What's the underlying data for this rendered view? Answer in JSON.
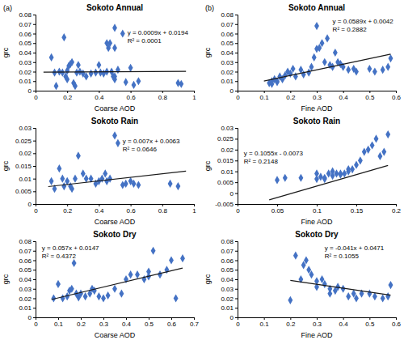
{
  "chart_data": [
    {
      "type": "scatter",
      "title": "Sokoto Annual",
      "panel_label": "(a)",
      "xlabel": "Coarse AOD",
      "ylabel": "grc",
      "xlim": [
        0,
        1
      ],
      "ylim": [
        0,
        0.08
      ],
      "xticks": [
        0,
        0.2,
        0.4,
        0.6,
        0.8,
        1
      ],
      "yticks": [
        0,
        0.01,
        0.02,
        0.03,
        0.04,
        0.05,
        0.06,
        0.07,
        0.08
      ],
      "annotations": [
        "y = 0.0009x + 0.0194",
        "R² = 0.0001"
      ],
      "grid": false,
      "series": [
        {
          "type": "scatter",
          "color": "#4472c4",
          "marker": "diamond",
          "x": [
            0.1,
            0.12,
            0.13,
            0.15,
            0.17,
            0.18,
            0.19,
            0.2,
            0.2,
            0.21,
            0.22,
            0.23,
            0.24,
            0.25,
            0.26,
            0.27,
            0.28,
            0.3,
            0.32,
            0.35,
            0.38,
            0.4,
            0.41,
            0.43,
            0.45,
            0.45,
            0.46,
            0.47,
            0.48,
            0.49,
            0.5,
            0.5,
            0.5,
            0.5,
            0.52,
            0.55,
            0.57,
            0.6,
            0.62,
            0.65,
            0.9,
            0.92
          ],
          "values": [
            0.035,
            0.019,
            0.005,
            0.02,
            0.019,
            0.056,
            0.015,
            0.021,
            0.012,
            0.026,
            0.028,
            0.03,
            0.008,
            0.005,
            0.019,
            0.027,
            0.02,
            0.018,
            0.015,
            0.018,
            0.019,
            0.027,
            0.019,
            0.018,
            0.02,
            0.05,
            0.045,
            0.05,
            0.02,
            0.015,
            0.066,
            0.045,
            0.015,
            0.012,
            0.022,
            0.06,
            0.009,
            0.024,
            0.006,
            0.01,
            0.008,
            0.007
          ]
        },
        {
          "type": "line",
          "color": "#1a1a1a",
          "line_style": "solid",
          "x": [
            0.05,
            0.95
          ],
          "values": [
            0.019445,
            0.020255
          ]
        }
      ]
    },
    {
      "type": "scatter",
      "title": "Sokoto Annual",
      "panel_label": "(b)",
      "xlabel": "Fine AOD",
      "ylabel": "grc",
      "xlim": [
        0,
        0.6
      ],
      "ylim": [
        0,
        0.08
      ],
      "xticks": [
        0,
        0.1,
        0.2,
        0.3,
        0.4,
        0.5,
        0.6
      ],
      "yticks": [
        0,
        0.01,
        0.02,
        0.03,
        0.04,
        0.05,
        0.06,
        0.07,
        0.08
      ],
      "annotations": [
        "y = 0.0589x + 0.0042",
        "R² = 0.2882"
      ],
      "grid": false,
      "series": [
        {
          "type": "scatter",
          "color": "#4472c4",
          "marker": "diamond",
          "x": [
            0.12,
            0.13,
            0.13,
            0.14,
            0.15,
            0.15,
            0.16,
            0.17,
            0.18,
            0.19,
            0.2,
            0.21,
            0.22,
            0.24,
            0.25,
            0.27,
            0.28,
            0.29,
            0.3,
            0.3,
            0.31,
            0.32,
            0.33,
            0.34,
            0.35,
            0.36,
            0.37,
            0.38,
            0.39,
            0.4,
            0.42,
            0.44,
            0.45,
            0.5,
            0.52,
            0.55,
            0.57,
            0.58
          ],
          "values": [
            0.008,
            0.007,
            0.01,
            0.012,
            0.009,
            0.01,
            0.015,
            0.012,
            0.016,
            0.02,
            0.018,
            0.023,
            0.015,
            0.022,
            0.017,
            0.019,
            0.025,
            0.035,
            0.068,
            0.044,
            0.045,
            0.05,
            0.03,
            0.055,
            0.027,
            0.025,
            0.04,
            0.03,
            0.028,
            0.025,
            0.022,
            0.023,
            0.02,
            0.023,
            0.02,
            0.022,
            0.025,
            0.034
          ]
        },
        {
          "type": "line",
          "color": "#1a1a1a",
          "line_style": "solid",
          "x": [
            0.1,
            0.58
          ],
          "values": [
            0.01009,
            0.038362
          ]
        }
      ]
    },
    {
      "type": "scatter",
      "title": "Sokoto Rain",
      "xlabel": "Coarse AOD",
      "ylabel": "grc",
      "xlim": [
        0,
        1
      ],
      "ylim": [
        0,
        0.03
      ],
      "xticks": [
        0,
        0.2,
        0.4,
        0.6,
        0.8,
        1
      ],
      "yticks": [
        0,
        0.005,
        0.01,
        0.015,
        0.02,
        0.025,
        0.03
      ],
      "annotations": [
        "y = 0.007x + 0.0063",
        "R² = 0.0646"
      ],
      "grid": false,
      "series": [
        {
          "type": "scatter",
          "color": "#4472c4",
          "marker": "diamond",
          "x": [
            0.1,
            0.12,
            0.15,
            0.17,
            0.18,
            0.2,
            0.22,
            0.23,
            0.25,
            0.27,
            0.3,
            0.32,
            0.35,
            0.38,
            0.4,
            0.42,
            0.44,
            0.45,
            0.47,
            0.5,
            0.52,
            0.55,
            0.57,
            0.6,
            0.62,
            0.65,
            0.85,
            0.9
          ],
          "values": [
            0.009,
            0.006,
            0.014,
            0.01,
            0.007,
            0.009,
            0.007,
            0.006,
            0.01,
            0.019,
            0.012,
            0.01,
            0.01,
            0.008,
            0.009,
            0.01,
            0.012,
            0.009,
            0.01,
            0.027,
            0.024,
            0.0075,
            0.008,
            0.009,
            0.008,
            0.0075,
            0.008,
            0.007
          ]
        },
        {
          "type": "line",
          "color": "#1a1a1a",
          "line_style": "solid",
          "x": [
            0.08,
            0.95
          ],
          "values": [
            0.00686,
            0.01295
          ]
        }
      ]
    },
    {
      "type": "scatter",
      "title": "Sokoto Rain",
      "xlabel": "Fine AOD",
      "ylabel": "grc",
      "xlim": [
        0,
        0.2
      ],
      "ylim": [
        -0.005,
        0.03
      ],
      "xticks": [
        0,
        0.05,
        0.1,
        0.15,
        0.2
      ],
      "yticks": [
        -0.005,
        0,
        0.005,
        0.01,
        0.015,
        0.02,
        0.025,
        0.03
      ],
      "annotations": [
        "y = 0.1055x - 0.0073",
        "R² = 0.2148"
      ],
      "grid": false,
      "series": [
        {
          "type": "scatter",
          "color": "#4472c4",
          "marker": "diamond",
          "x": [
            0.05,
            0.06,
            0.08,
            0.1,
            0.1,
            0.105,
            0.11,
            0.11,
            0.115,
            0.12,
            0.12,
            0.125,
            0.13,
            0.13,
            0.135,
            0.14,
            0.14,
            0.145,
            0.15,
            0.155,
            0.16,
            0.165,
            0.17,
            0.175,
            0.18,
            0.185,
            0.19
          ],
          "values": [
            0.006,
            0.007,
            0.007,
            0.0065,
            0.009,
            0.0075,
            0.007,
            0.0065,
            0.009,
            0.008,
            0.01,
            0.009,
            0.009,
            0.0085,
            0.009,
            0.01,
            0.011,
            0.011,
            0.013,
            0.015,
            0.019,
            0.02,
            0.022,
            0.025,
            0.017,
            0.019,
            0.027
          ]
        },
        {
          "type": "line",
          "color": "#1a1a1a",
          "line_style": "solid",
          "x": [
            0.04,
            0.19
          ],
          "values": [
            -0.00308,
            0.012745
          ]
        }
      ]
    },
    {
      "type": "scatter",
      "title": "Sokoto Dry",
      "xlabel": "Coarse AOD",
      "ylabel": "grc",
      "xlim": [
        0,
        0.7
      ],
      "ylim": [
        0,
        0.08
      ],
      "xticks": [
        0,
        0.1,
        0.2,
        0.3,
        0.4,
        0.5,
        0.6,
        0.7
      ],
      "yticks": [
        0,
        0.01,
        0.02,
        0.03,
        0.04,
        0.05,
        0.06,
        0.07,
        0.08
      ],
      "annotations": [
        "y = 0.057x + 0.0147",
        "R² = 0.4372"
      ],
      "grid": false,
      "series": [
        {
          "type": "scatter",
          "color": "#4472c4",
          "marker": "diamond",
          "x": [
            0.08,
            0.1,
            0.12,
            0.14,
            0.15,
            0.16,
            0.17,
            0.18,
            0.19,
            0.2,
            0.22,
            0.24,
            0.25,
            0.26,
            0.28,
            0.3,
            0.32,
            0.35,
            0.38,
            0.4,
            0.42,
            0.45,
            0.48,
            0.5,
            0.5,
            0.52,
            0.55,
            0.58,
            0.6,
            0.62,
            0.65
          ],
          "values": [
            0.02,
            0.035,
            0.02,
            0.022,
            0.028,
            0.03,
            0.057,
            0.025,
            0.021,
            0.025,
            0.022,
            0.025,
            0.03,
            0.028,
            0.022,
            0.02,
            0.023,
            0.03,
            0.025,
            0.04,
            0.045,
            0.045,
            0.04,
            0.048,
            0.043,
            0.07,
            0.045,
            0.05,
            0.06,
            0.02,
            0.062
          ]
        },
        {
          "type": "line",
          "color": "#1a1a1a",
          "line_style": "solid",
          "x": [
            0.07,
            0.65
          ],
          "values": [
            0.01869,
            0.05175
          ]
        }
      ]
    },
    {
      "type": "scatter",
      "title": "Sokoto Dry",
      "xlabel": "Fine AOD",
      "ylabel": "grc",
      "xlim": [
        0,
        0.6
      ],
      "ylim": [
        0,
        0.08
      ],
      "xticks": [
        0,
        0.1,
        0.2,
        0.3,
        0.4,
        0.5,
        0.6
      ],
      "yticks": [
        0,
        0.01,
        0.02,
        0.03,
        0.04,
        0.05,
        0.06,
        0.07,
        0.08
      ],
      "annotations": [
        "y = -0.041x + 0.0471",
        "R² = 0.1055"
      ],
      "grid": false,
      "series": [
        {
          "type": "scatter",
          "color": "#4472c4",
          "marker": "diamond",
          "x": [
            0.2,
            0.22,
            0.24,
            0.25,
            0.26,
            0.27,
            0.28,
            0.3,
            0.3,
            0.32,
            0.33,
            0.35,
            0.35,
            0.37,
            0.38,
            0.4,
            0.42,
            0.44,
            0.45,
            0.47,
            0.5,
            0.52,
            0.55,
            0.57,
            0.58
          ],
          "values": [
            0.018,
            0.065,
            0.04,
            0.055,
            0.06,
            0.05,
            0.045,
            0.038,
            0.032,
            0.04,
            0.035,
            0.03,
            0.025,
            0.028,
            0.032,
            0.03,
            0.022,
            0.025,
            0.02,
            0.025,
            0.025,
            0.022,
            0.02,
            0.022,
            0.034
          ]
        },
        {
          "type": "line",
          "color": "#1a1a1a",
          "line_style": "solid",
          "x": [
            0.2,
            0.58
          ],
          "values": [
            0.0389,
            0.02332
          ]
        }
      ]
    }
  ]
}
